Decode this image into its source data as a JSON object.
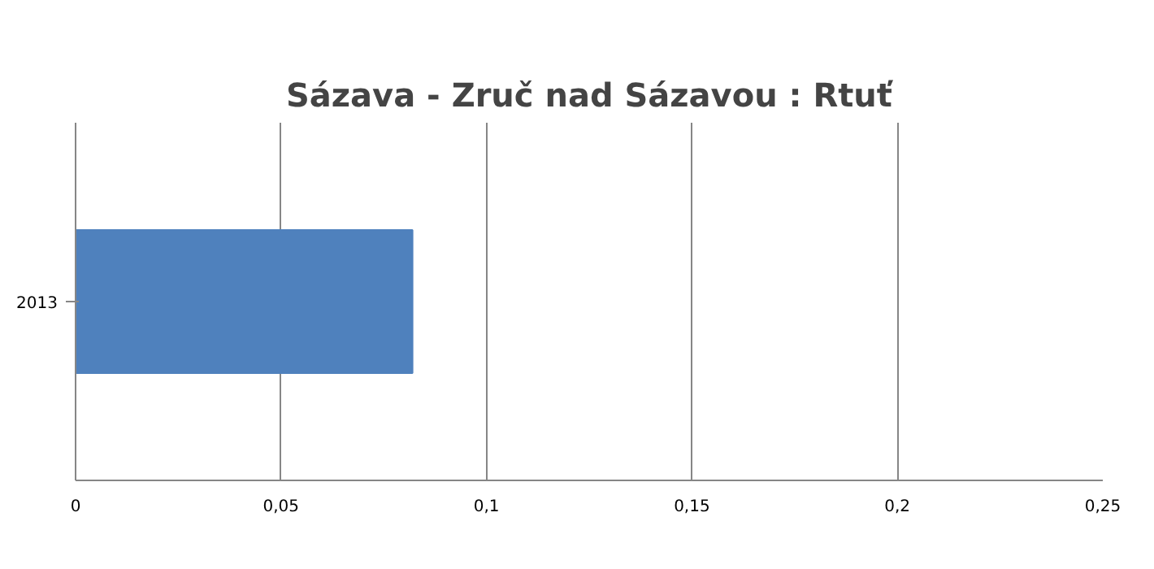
{
  "chart_data": {
    "type": "bar",
    "orientation": "horizontal",
    "title": "Sázava - Zruč nad Sázavou : Rtuť",
    "categories": [
      "2013"
    ],
    "series": [
      {
        "color": "#4f81bd",
        "values": [
          0.082
        ]
      }
    ],
    "xlim": [
      0,
      0.25
    ],
    "xticks": [
      0,
      {
        "value": 0.05,
        "label": "0,05"
      },
      {
        "value": 0.1,
        "label": "0,1"
      },
      {
        "value": 0.15,
        "label": "0,15"
      },
      {
        "value": 0.2,
        "label": "0,2"
      },
      {
        "value": 0.25,
        "label": "0,25"
      }
    ],
    "grid": "x"
  }
}
